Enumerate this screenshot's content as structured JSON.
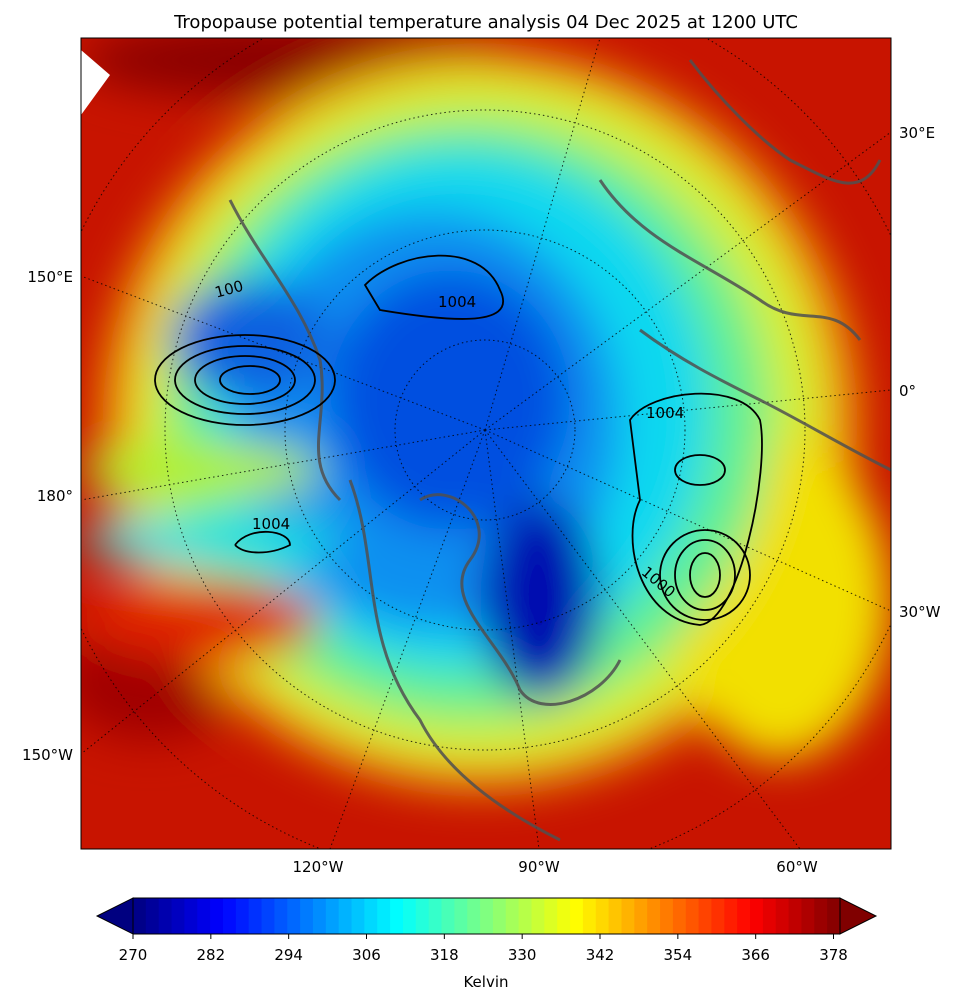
{
  "title": "Tropopause potential temperature analysis 04 Dec 2025 at 1200 UTC",
  "map": {
    "lon_labels_right": [
      "30°E",
      "0°",
      "30°W"
    ],
    "lon_labels_left": [
      "150°E",
      "180°",
      "150°W"
    ],
    "lon_labels_bottom": [
      "120°W",
      "90°W",
      "60°W"
    ],
    "contour_labels": [
      "1004",
      "1004",
      "1004",
      "1000",
      "100"
    ]
  },
  "colorbar": {
    "label": "Kelvin",
    "lim": [
      270,
      379
    ],
    "ticks": [
      270,
      282,
      294,
      306,
      318,
      330,
      342,
      354,
      366,
      378
    ]
  }
}
